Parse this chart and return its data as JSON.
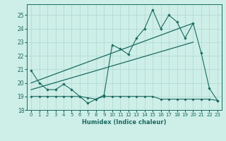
{
  "xlabel": "Humidex (Indice chaleur)",
  "xlim": [
    -0.5,
    23.5
  ],
  "ylim": [
    18,
    25.8
  ],
  "yticks": [
    18,
    19,
    20,
    21,
    22,
    23,
    24,
    25
  ],
  "xticks": [
    0,
    1,
    2,
    3,
    4,
    5,
    6,
    7,
    8,
    9,
    10,
    11,
    12,
    13,
    14,
    15,
    16,
    17,
    18,
    19,
    20,
    21,
    22,
    23
  ],
  "bg_color": "#ceeee8",
  "line_color": "#1a6b60",
  "grid_color": "#aed8d0",
  "line1_x": [
    0,
    1,
    2,
    3,
    4,
    5,
    6,
    7,
    8,
    9,
    10,
    11,
    12,
    13,
    14,
    15,
    16,
    17,
    18,
    19,
    20,
    21,
    22,
    23
  ],
  "line1_y": [
    20.9,
    20.0,
    19.5,
    19.5,
    19.9,
    19.5,
    19.0,
    18.5,
    18.8,
    19.1,
    22.8,
    22.5,
    22.1,
    23.3,
    24.0,
    25.4,
    24.0,
    25.0,
    24.5,
    23.3,
    24.4,
    22.2,
    19.6,
    18.7
  ],
  "line2_x": [
    0,
    1,
    2,
    3,
    4,
    5,
    6,
    7,
    8,
    9,
    10,
    11,
    12,
    13,
    14,
    15,
    16,
    17,
    18,
    19,
    20,
    21,
    22,
    23
  ],
  "line2_y": [
    19.0,
    19.0,
    19.0,
    19.0,
    19.0,
    19.0,
    19.0,
    18.9,
    18.8,
    19.0,
    19.0,
    19.0,
    19.0,
    19.0,
    19.0,
    19.0,
    18.8,
    18.8,
    18.8,
    18.8,
    18.8,
    18.8,
    18.8,
    18.7
  ],
  "line3_x": [
    0,
    20
  ],
  "line3_y": [
    20.0,
    24.4
  ],
  "line4_x": [
    0,
    20
  ],
  "line4_y": [
    19.5,
    23.0
  ],
  "xlabel_fontsize": 6,
  "tick_fontsize": 5,
  "ytick_fontsize": 5.5
}
